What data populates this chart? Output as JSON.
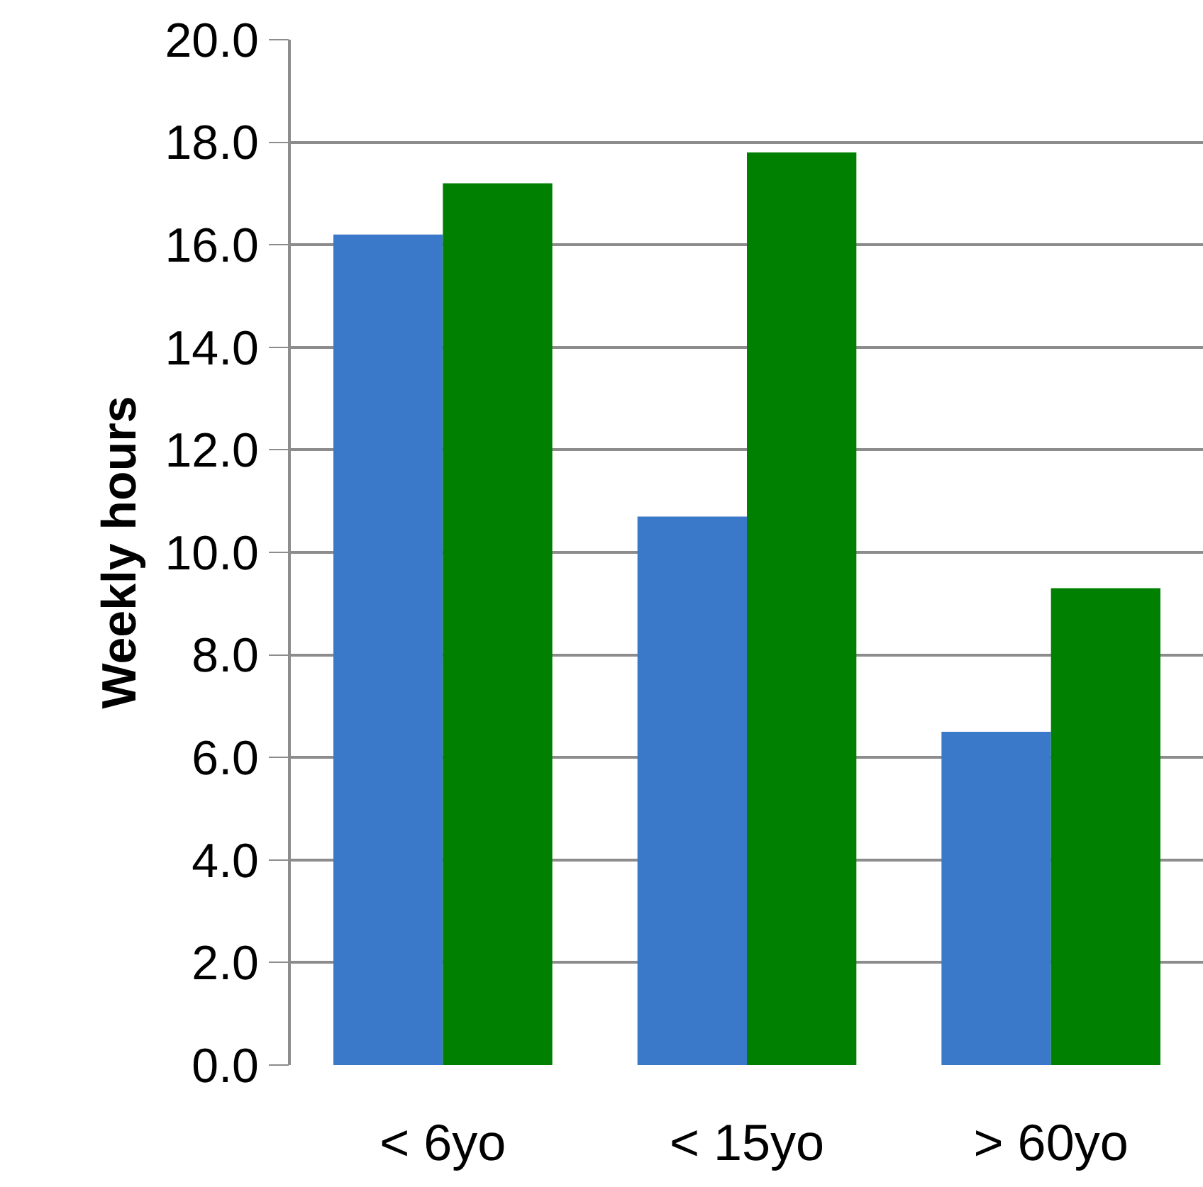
{
  "chart_data": {
    "type": "bar",
    "ylabel": "Weekly hours",
    "categories": [
      "< 6yo",
      "< 15yo",
      "> 60yo"
    ],
    "series": [
      {
        "color": "#3a78c9",
        "values": [
          16.2,
          10.7,
          6.5
        ]
      },
      {
        "color": "#008000",
        "values": [
          17.2,
          17.8,
          9.3
        ]
      }
    ],
    "ylim": [
      0,
      20
    ],
    "yticks": [
      {
        "value": 0,
        "label": "0.0"
      },
      {
        "value": 2,
        "label": "2.0"
      },
      {
        "value": 4,
        "label": "4.0"
      },
      {
        "value": 6,
        "label": "6.0"
      },
      {
        "value": 8,
        "label": "8.0"
      },
      {
        "value": 10,
        "label": "10.0"
      },
      {
        "value": 12,
        "label": "12.0"
      },
      {
        "value": 14,
        "label": "14.0"
      },
      {
        "value": 16,
        "label": "16.0"
      },
      {
        "value": 18,
        "label": "18.0"
      },
      {
        "value": 20,
        "label": "20.0"
      }
    ],
    "grid": "y"
  }
}
